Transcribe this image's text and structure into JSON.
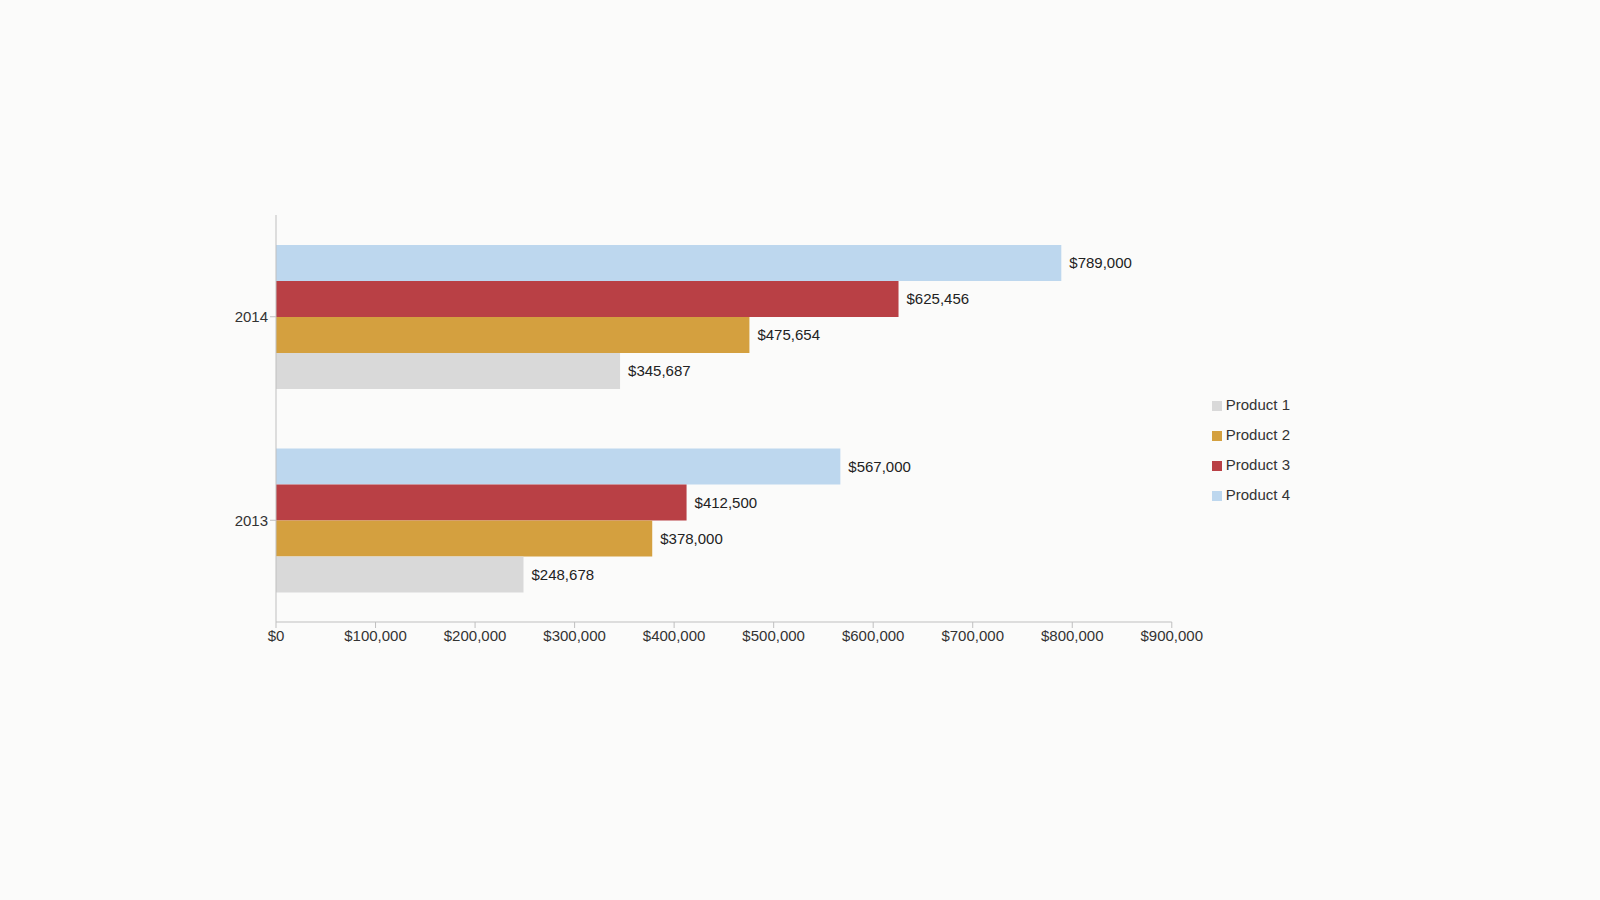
{
  "chart_data": {
    "type": "bar",
    "orientation": "horizontal",
    "categories": [
      "2013",
      "2014"
    ],
    "series": [
      {
        "name": "Product 4",
        "color": "#bdd7ee",
        "values": [
          567000,
          789000
        ],
        "value_labels": [
          "$567,000",
          "$789,000"
        ]
      },
      {
        "name": "Product 3",
        "color": "#b94045",
        "values": [
          412500,
          625456
        ],
        "value_labels": [
          "$412,500",
          "$625,456"
        ]
      },
      {
        "name": "Product 2",
        "color": "#d4a03f",
        "values": [
          378000,
          475654
        ],
        "value_labels": [
          "$378,000",
          "$475,654"
        ]
      },
      {
        "name": "Product 1",
        "color": "#d9d9d9",
        "values": [
          248678,
          345687
        ],
        "value_labels": [
          "$248,678",
          "$345,687"
        ]
      }
    ],
    "xlim": [
      0,
      900000
    ],
    "xticks": [
      {
        "value": 0,
        "label": "$0"
      },
      {
        "value": 100000,
        "label": "$100,000"
      },
      {
        "value": 200000,
        "label": "$200,000"
      },
      {
        "value": 300000,
        "label": "$300,000"
      },
      {
        "value": 400000,
        "label": "$400,000"
      },
      {
        "value": 500000,
        "label": "$500,000"
      },
      {
        "value": 600000,
        "label": "$600,000"
      },
      {
        "value": 700000,
        "label": "$700,000"
      },
      {
        "value": 800000,
        "label": "$800,000"
      },
      {
        "value": 900000,
        "label": "$900,000"
      }
    ],
    "grid": false,
    "legend": "right",
    "data_labels": true
  }
}
